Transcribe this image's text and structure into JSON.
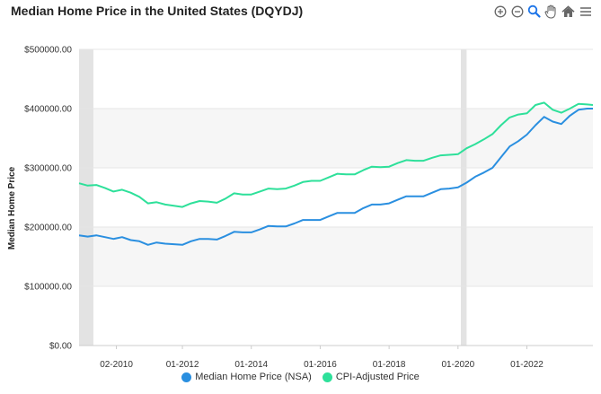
{
  "header": {
    "title": "Median Home Price in the United States (DQYDJ)"
  },
  "toolbar": {
    "icons": [
      "zoom-in-icon",
      "zoom-out-icon",
      "zoom-select-icon",
      "pan-hand-icon",
      "home-reset-icon",
      "menu-icon"
    ]
  },
  "colors": {
    "nsa": "#2a8fe0",
    "cpi": "#2ee09a",
    "recession": "#e3e3e3",
    "band": "#f6f6f6"
  },
  "chart_data": {
    "type": "line",
    "title": "Median Home Price in the United States (DQYDJ)",
    "xlabel": "",
    "ylabel": "Median Home Price",
    "ylim": [
      0,
      500000
    ],
    "xlim": [
      "2009-01",
      "2023-12"
    ],
    "grid": true,
    "legend_position": "bottom",
    "ytick_labels": [
      "$0.00",
      "$100000.00",
      "$200000.00",
      "$300000.00",
      "$400000.00",
      "$500000.00"
    ],
    "yticks": [
      0,
      100000,
      200000,
      300000,
      400000,
      500000
    ],
    "xtick_labels": [
      "02-2010",
      "01-2012",
      "01-2014",
      "01-2016",
      "01-2018",
      "01-2020",
      "01-2022"
    ],
    "xticks": [
      "2010-02",
      "2012-01",
      "2014-01",
      "2016-01",
      "2018-01",
      "2020-01",
      "2022-01"
    ],
    "recessions": [
      [
        "2009-01",
        "2009-06"
      ],
      [
        "2020-02",
        "2020-04"
      ]
    ],
    "series": [
      {
        "name": "Median Home Price (NSA)",
        "x": [
          "2009-01",
          "2009-04",
          "2009-07",
          "2009-10",
          "2010-01",
          "2010-04",
          "2010-07",
          "2010-10",
          "2011-01",
          "2011-04",
          "2011-07",
          "2011-10",
          "2012-01",
          "2012-04",
          "2012-07",
          "2012-10",
          "2013-01",
          "2013-04",
          "2013-07",
          "2013-10",
          "2014-01",
          "2014-04",
          "2014-07",
          "2014-10",
          "2015-01",
          "2015-04",
          "2015-07",
          "2015-10",
          "2016-01",
          "2016-04",
          "2016-07",
          "2016-10",
          "2017-01",
          "2017-04",
          "2017-07",
          "2017-10",
          "2018-01",
          "2018-04",
          "2018-07",
          "2018-10",
          "2019-01",
          "2019-04",
          "2019-07",
          "2019-10",
          "2020-01",
          "2020-04",
          "2020-07",
          "2020-10",
          "2021-01",
          "2021-04",
          "2021-07",
          "2021-10",
          "2022-01",
          "2022-04",
          "2022-07",
          "2022-10",
          "2023-01",
          "2023-04",
          "2023-07",
          "2023-10",
          "2023-12"
        ],
        "values": [
          186000,
          184000,
          186000,
          183000,
          180000,
          183000,
          178000,
          176000,
          170000,
          174000,
          172000,
          171000,
          170000,
          176000,
          180000,
          180000,
          179000,
          185000,
          192000,
          191000,
          191000,
          196000,
          202000,
          201000,
          201000,
          206000,
          212000,
          212000,
          212000,
          218000,
          224000,
          224000,
          224000,
          232000,
          238000,
          238000,
          240000,
          246000,
          252000,
          252000,
          252000,
          258000,
          264000,
          265000,
          267000,
          275000,
          285000,
          292000,
          300000,
          318000,
          336000,
          345000,
          356000,
          372000,
          386000,
          378000,
          374000,
          388000,
          398000,
          400000,
          400000
        ]
      },
      {
        "name": "CPI-Adjusted Price",
        "x": [
          "2009-01",
          "2009-04",
          "2009-07",
          "2009-10",
          "2010-01",
          "2010-04",
          "2010-07",
          "2010-10",
          "2011-01",
          "2011-04",
          "2011-07",
          "2011-10",
          "2012-01",
          "2012-04",
          "2012-07",
          "2012-10",
          "2013-01",
          "2013-04",
          "2013-07",
          "2013-10",
          "2014-01",
          "2014-04",
          "2014-07",
          "2014-10",
          "2015-01",
          "2015-04",
          "2015-07",
          "2015-10",
          "2016-01",
          "2016-04",
          "2016-07",
          "2016-10",
          "2017-01",
          "2017-04",
          "2017-07",
          "2017-10",
          "2018-01",
          "2018-04",
          "2018-07",
          "2018-10",
          "2019-01",
          "2019-04",
          "2019-07",
          "2019-10",
          "2020-01",
          "2020-04",
          "2020-07",
          "2020-10",
          "2021-01",
          "2021-04",
          "2021-07",
          "2021-10",
          "2022-01",
          "2022-04",
          "2022-07",
          "2022-10",
          "2023-01",
          "2023-04",
          "2023-07",
          "2023-10",
          "2023-12"
        ],
        "values": [
          274000,
          270000,
          271000,
          266000,
          260000,
          263000,
          258000,
          251000,
          240000,
          242000,
          238000,
          236000,
          234000,
          240000,
          244000,
          243000,
          241000,
          248000,
          257000,
          255000,
          255000,
          260000,
          265000,
          264000,
          265000,
          270000,
          276000,
          278000,
          278000,
          284000,
          290000,
          289000,
          289000,
          296000,
          302000,
          301000,
          302000,
          308000,
          313000,
          312000,
          312000,
          317000,
          321000,
          322000,
          323000,
          333000,
          340000,
          348000,
          357000,
          372000,
          385000,
          390000,
          392000,
          406000,
          410000,
          398000,
          393000,
          400000,
          408000,
          407000,
          406000
        ]
      }
    ]
  }
}
